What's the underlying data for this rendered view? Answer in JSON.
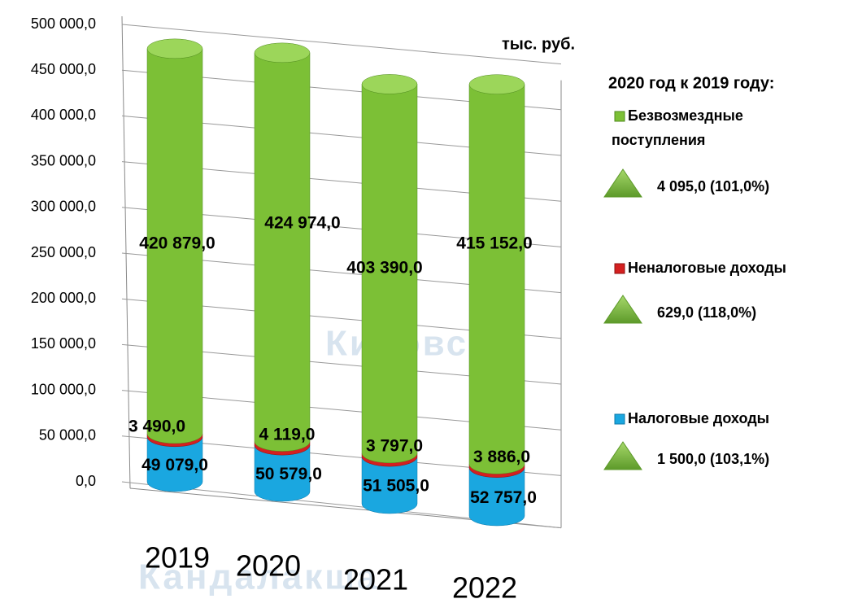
{
  "chart_data": {
    "type": "bar",
    "stacked": true,
    "unit_label": "тыс. руб.",
    "legend_title": "2020 год к 2019 году:",
    "background_labels": [
      "Кандалакша",
      "Кировск"
    ],
    "categories": [
      "2019",
      "2020",
      "2021",
      "2022"
    ],
    "series": [
      {
        "name": "Налоговые доходы",
        "color": "#1aa7e0",
        "values": [
          49079,
          50579,
          51505,
          52757
        ],
        "value_labels": [
          "49 079,0",
          "50 579,0",
          "51 505,0",
          "52 757,0"
        ],
        "annotation": "1 500,0 (103,1%)"
      },
      {
        "name": "Неналоговые доходы",
        "color": "#d42020",
        "values": [
          3490,
          4119,
          3797,
          3886
        ],
        "value_labels": [
          "3 490,0",
          "4 119,0",
          "3 797,0",
          "3 886,0"
        ],
        "annotation": "629,0 (118,0%)"
      },
      {
        "name": "Безвозмездные поступления",
        "color": "#7cc036",
        "values": [
          420879,
          424974,
          403390,
          415152
        ],
        "value_labels": [
          "420 879,0",
          "424 974,0",
          "403 390,0",
          "415 152,0"
        ],
        "annotation": "4 095,0 (101,0%)"
      }
    ],
    "ylim": [
      0,
      500000
    ],
    "yticks": [
      {
        "value": 0,
        "label": "0,0"
      },
      {
        "value": 50000,
        "label": "50 000,0"
      },
      {
        "value": 100000,
        "label": "100 000,0"
      },
      {
        "value": 150000,
        "label": "150 000,0"
      },
      {
        "value": 200000,
        "label": "200 000,0"
      },
      {
        "value": 250000,
        "label": "250 000,0"
      },
      {
        "value": 300000,
        "label": "300 000,0"
      },
      {
        "value": 350000,
        "label": "350 000,0"
      },
      {
        "value": 400000,
        "label": "400 000,0"
      },
      {
        "value": 450000,
        "label": "450 000,0"
      },
      {
        "value": 500000,
        "label": "500 000,0"
      }
    ],
    "grid": true
  }
}
